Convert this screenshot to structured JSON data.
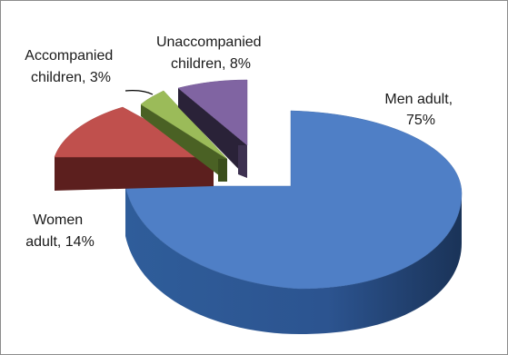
{
  "chart_data": {
    "type": "pie",
    "style": "3d-exploded",
    "legend": "none",
    "slices": [
      {
        "name": "Men adult",
        "value": 75,
        "label": [
          "Men adult,",
          "75%"
        ],
        "color": "#4F7FC6"
      },
      {
        "name": "Women adult",
        "value": 14,
        "label": [
          "Women",
          "adult, 14%"
        ],
        "color": "#C0504D"
      },
      {
        "name": "Accompanied children",
        "value": 3,
        "label": [
          "Accompanied",
          "children, 3%"
        ],
        "color": "#9BBB59"
      },
      {
        "name": "Unaccompanied children",
        "value": 8,
        "label": [
          "Unaccompanied",
          "children, 8%"
        ],
        "color": "#8064A2"
      }
    ]
  }
}
